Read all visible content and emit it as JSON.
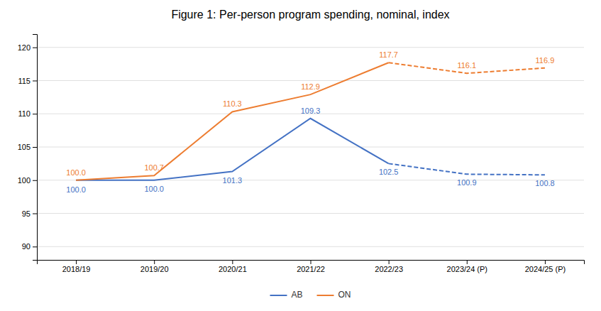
{
  "chart_data": {
    "type": "line",
    "title": "Figure 1: Per-person program spending, nominal, index",
    "categories": [
      "2018/19",
      "2019/20",
      "2020/21",
      "2021/22",
      "2022/23",
      "2023/24 (P)",
      "2024/25 (P)"
    ],
    "series": [
      {
        "name": "AB",
        "color": "#4472C4",
        "line_style": "solid",
        "values": [
          100.0,
          100.0,
          101.3,
          109.3,
          102.5,
          null,
          null
        ],
        "value_labels": [
          "100.0",
          "100.0",
          "101.3",
          "109.3",
          "102.5",
          null,
          null
        ]
      },
      {
        "color": "#4472C4",
        "line_style": "dashed",
        "values": [
          null,
          null,
          null,
          null,
          102.5,
          100.9,
          100.8
        ],
        "value_labels": [
          null,
          null,
          null,
          null,
          null,
          "100.9",
          "100.8"
        ]
      },
      {
        "name": "ON",
        "color": "#ED7D31",
        "line_style": "solid",
        "values": [
          100.0,
          100.7,
          110.3,
          112.9,
          117.7,
          null,
          null
        ],
        "value_labels": [
          "100.0",
          "100.7",
          "110.3",
          "112.9",
          "117.7",
          null,
          null
        ]
      },
      {
        "color": "#ED7D31",
        "line_style": "dashed",
        "values": [
          null,
          null,
          null,
          null,
          117.7,
          116.1,
          116.9
        ],
        "value_labels": [
          null,
          null,
          null,
          null,
          null,
          "116.1",
          "116.9"
        ]
      }
    ],
    "ylim": [
      88,
      122
    ],
    "yticks": [
      90,
      95,
      100,
      105,
      110,
      115,
      120
    ],
    "grid": true,
    "data_labels": true,
    "legend": "bottom"
  }
}
